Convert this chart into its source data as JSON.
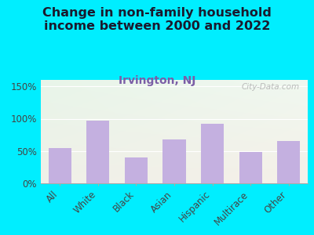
{
  "title": "Change in non-family household\nincome between 2000 and 2022",
  "subtitle": "Irvington, NJ",
  "categories": [
    "All",
    "White",
    "Black",
    "Asian",
    "Hispanic",
    "Multirace",
    "Other"
  ],
  "values": [
    55,
    97,
    40,
    68,
    92,
    49,
    65
  ],
  "bar_color": "#c4b0e0",
  "background_outer": "#00eeff",
  "background_inner_top_left": "#e8f5e9",
  "background_inner_bottom_right": "#f5f5ec",
  "title_color": "#1a1a2e",
  "subtitle_color": "#7b5ea7",
  "yticks": [
    0,
    50,
    100,
    150
  ],
  "ylim": [
    0,
    160
  ],
  "watermark": "City-Data.com",
  "title_fontsize": 11.5,
  "subtitle_fontsize": 10
}
